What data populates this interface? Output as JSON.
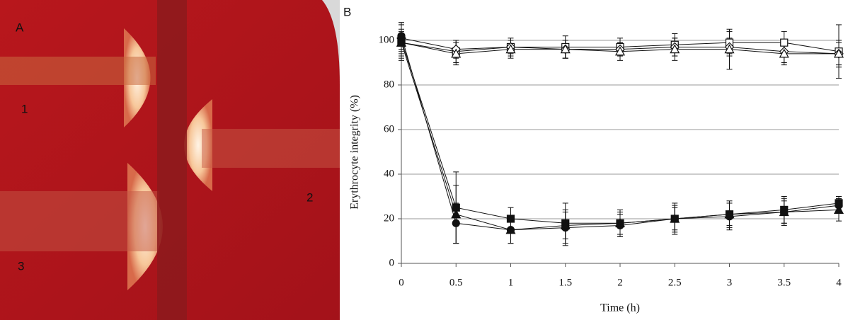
{
  "panel_a": {
    "label": "A",
    "regions": [
      "1",
      "2",
      "3"
    ]
  },
  "chart_data": {
    "type": "line",
    "panel_label": "B",
    "x_label": "Time (h)",
    "y_label": "Erythrocyte integrity (%)",
    "x": [
      0,
      0.5,
      1,
      1.5,
      2,
      2.5,
      3,
      3.5,
      4
    ],
    "xlim": [
      0,
      4
    ],
    "xticks": [
      0,
      0.5,
      1,
      1.5,
      2,
      2.5,
      3,
      3.5,
      4
    ],
    "ylim": [
      0,
      100
    ],
    "yticks": [
      0,
      20,
      40,
      60,
      80,
      100
    ],
    "grid": true,
    "series": [
      {
        "color": "#111",
        "marker": "square",
        "filled": false,
        "values": [
          99,
          95,
          97,
          97,
          97,
          98,
          99,
          99,
          95
        ],
        "errors": [
          8,
          5,
          4,
          5,
          4,
          5,
          5,
          5,
          12
        ]
      },
      {
        "color": "#111",
        "marker": "diamond",
        "filled": false,
        "values": [
          101,
          96,
          97,
          96,
          96,
          97,
          97,
          95,
          94
        ],
        "errors": [
          6,
          4,
          3,
          4,
          3,
          4,
          4,
          5,
          6
        ]
      },
      {
        "color": "#111",
        "marker": "triangle",
        "filled": false,
        "values": [
          99,
          94,
          96,
          96,
          95,
          96,
          96,
          94,
          94
        ],
        "errors": [
          5,
          5,
          4,
          4,
          4,
          5,
          9,
          5,
          5
        ]
      },
      {
        "color": "#111",
        "marker": "square",
        "filled": true,
        "values": [
          100,
          25,
          20,
          18,
          18,
          20,
          22,
          24,
          27
        ],
        "errors": [
          8,
          16,
          5,
          9,
          6,
          7,
          6,
          6,
          3
        ]
      },
      {
        "color": "#111",
        "marker": "circle",
        "filled": true,
        "values": [
          102,
          18,
          15,
          16,
          17,
          20,
          21,
          23,
          26
        ],
        "errors": [
          6,
          9,
          6,
          8,
          5,
          6,
          6,
          6,
          3
        ]
      },
      {
        "color": "#111",
        "marker": "triangle",
        "filled": true,
        "values": [
          99,
          22,
          15,
          17,
          18,
          20,
          22,
          23,
          24
        ],
        "errors": [
          6,
          13,
          6,
          6,
          5,
          5,
          5,
          5,
          5
        ]
      }
    ]
  }
}
